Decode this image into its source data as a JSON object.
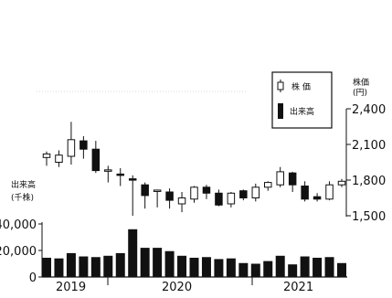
{
  "chart_data": {
    "type": "candlestick",
    "price_axis": {
      "label_main": "株価",
      "label_unit": "(円)",
      "ylim": [
        1500,
        2400
      ],
      "ticks": [
        2400,
        2100,
        1800,
        1500
      ],
      "tick_labels": [
        "2,400",
        "2,100",
        "1,800",
        "1,500"
      ]
    },
    "volume_axis": {
      "label_main": "出来高",
      "label_unit": "(千株)",
      "ylim": [
        0,
        40000
      ],
      "ticks": [
        40000,
        20000,
        0
      ],
      "tick_labels": [
        "40,000",
        "20,000",
        "0"
      ]
    },
    "x_axis": {
      "year_labels": [
        "2019",
        "2020",
        "2021"
      ]
    },
    "legend": {
      "placement": "top-right",
      "items": [
        {
          "label": "株 価",
          "symbol": "candle-icon"
        },
        {
          "label": "出来高",
          "symbol": "bar-icon"
        }
      ]
    },
    "candles": [
      {
        "open": 1990,
        "close": 2020,
        "high": 2040,
        "low": 1920
      },
      {
        "open": 1950,
        "close": 2010,
        "high": 2050,
        "low": 1910
      },
      {
        "open": 2000,
        "close": 2140,
        "high": 2290,
        "low": 1930
      },
      {
        "open": 2130,
        "close": 2060,
        "high": 2170,
        "low": 1980
      },
      {
        "open": 2060,
        "close": 1880,
        "high": 2130,
        "low": 1860
      },
      {
        "open": 1880,
        "close": 1880,
        "high": 1920,
        "low": 1780
      },
      {
        "open": 1850,
        "close": 1840,
        "high": 1900,
        "low": 1750
      },
      {
        "open": 1810,
        "close": 1800,
        "high": 1840,
        "low": 1500
      },
      {
        "open": 1760,
        "close": 1670,
        "high": 1780,
        "low": 1560
      },
      {
        "open": 1710,
        "close": 1710,
        "high": 1720,
        "low": 1570
      },
      {
        "open": 1700,
        "close": 1630,
        "high": 1730,
        "low": 1560
      },
      {
        "open": 1600,
        "close": 1650,
        "high": 1700,
        "low": 1530
      },
      {
        "open": 1640,
        "close": 1740,
        "high": 1750,
        "low": 1610
      },
      {
        "open": 1740,
        "close": 1690,
        "high": 1760,
        "low": 1640
      },
      {
        "open": 1690,
        "close": 1590,
        "high": 1720,
        "low": 1580
      },
      {
        "open": 1600,
        "close": 1690,
        "high": 1700,
        "low": 1570
      },
      {
        "open": 1710,
        "close": 1650,
        "high": 1720,
        "low": 1630
      },
      {
        "open": 1650,
        "close": 1740,
        "high": 1770,
        "low": 1620
      },
      {
        "open": 1740,
        "close": 1780,
        "high": 1790,
        "low": 1710
      },
      {
        "open": 1760,
        "close": 1870,
        "high": 1910,
        "low": 1740
      },
      {
        "open": 1860,
        "close": 1760,
        "high": 1870,
        "low": 1700
      },
      {
        "open": 1750,
        "close": 1640,
        "high": 1790,
        "low": 1620
      },
      {
        "open": 1660,
        "close": 1640,
        "high": 1690,
        "low": 1620
      },
      {
        "open": 1640,
        "close": 1760,
        "high": 1790,
        "low": 1630
      },
      {
        "open": 1760,
        "close": 1790,
        "high": 1810,
        "low": 1740
      }
    ],
    "volume": [
      14500,
      14000,
      18000,
      15500,
      15000,
      16000,
      18000,
      36000,
      22000,
      22000,
      19500,
      16000,
      14500,
      15000,
      13500,
      14000,
      10500,
      10000,
      12000,
      16000,
      9500,
      15500,
      14500,
      15000,
      10500
    ]
  }
}
